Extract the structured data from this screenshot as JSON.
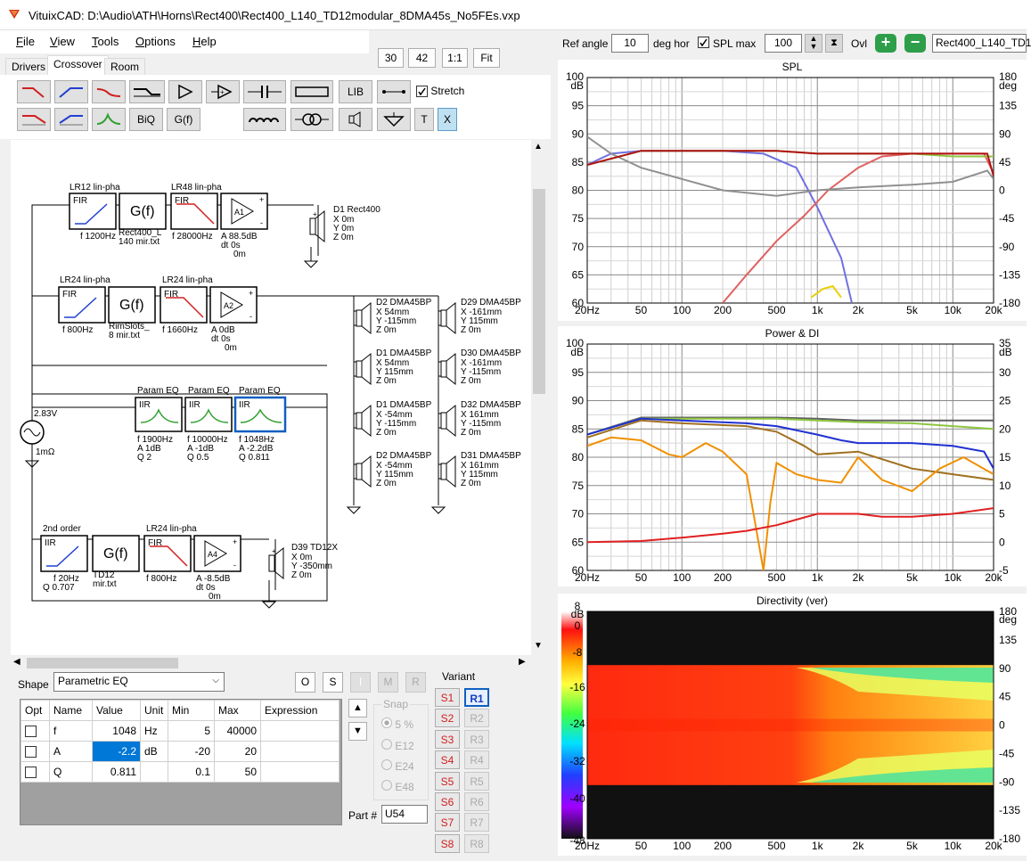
{
  "window": {
    "title": "VituixCAD: D:\\Audio\\ATH\\Horns\\Rect400\\Rect400_L140_TD12modular_8DMA45s_No5FEs.vxp"
  },
  "menu": [
    {
      "u": "F",
      "rest": "ile"
    },
    {
      "u": "V",
      "rest": "iew"
    },
    {
      "u": "T",
      "rest": "ools"
    },
    {
      "u": "O",
      "rest": "ptions"
    },
    {
      "u": "H",
      "rest": "elp"
    }
  ],
  "zoom": {
    "v1": "30",
    "v2": "42",
    "one": "1:1",
    "fit": "Fit"
  },
  "tabs": [
    "Drivers",
    "Crossover",
    "Room"
  ],
  "toolbox": {
    "lib": "LIB",
    "stretch": "Stretch",
    "biq": "BiQ",
    "gf": "G(f)",
    "t": "T",
    "x": "X"
  },
  "schematic": {
    "row1": {
      "lr12": "LR12 lin-pha",
      "lr48": "LR48 lin-pha",
      "fir": "FIR",
      "gf": "G(f)",
      "f1": "f  1200Hz",
      "gtxt1": "Rect400_L",
      "gtxt2": "140 mir.txt",
      "f2": "f  28000Hz",
      "amp": "A1",
      "a": "A  88.5dB",
      "dt": "dt 0s",
      "z": "0m",
      "d1": "D1 Rect400",
      "x": "X 0m",
      "y": "Y 0m",
      "zz": "Z 0m"
    },
    "row2": {
      "lr24a": "LR24 lin-pha",
      "lr24b": "LR24 lin-pha",
      "f1": "f  800Hz",
      "gtxt1": "RimSlots_",
      "gtxt2": "8 mir.txt",
      "f2": "f  1660Hz",
      "amp": "A2",
      "a": "A  0dB",
      "dt": "dt 0s",
      "z": "0m"
    },
    "source": {
      "v": "2.83V",
      "r": "1mΩ"
    },
    "eq": {
      "p1": "Param EQ",
      "p2": "Param EQ",
      "p3": "Param EQ",
      "iir": "IIR",
      "e1f": "f  1900Hz",
      "e1a": "A  1dB",
      "e1q": "Q 2",
      "e2f": "f  10000Hz",
      "e2a": "A  -1dB",
      "e2q": "Q 0.5",
      "e3f": "f  1048Hz",
      "e3a": "A  -2.2dB",
      "e3q": "Q 0.811"
    },
    "row3": {
      "o2": "2nd order",
      "lr24": "LR24 lin-pha",
      "f1": "f  20Hz",
      "q": "Q 0.707",
      "gtxt1": "TD12",
      "gtxt2": "mir.txt",
      "f2": "f  800Hz",
      "amp": "A4",
      "a": "A  -8.5dB",
      "dt": "dt 0s",
      "z": "0m",
      "d": "D39 TD12X",
      "x": "X 0m",
      "y": "Y -350mm",
      "zz": "Z 0m"
    },
    "drivers": [
      {
        "n": "D2 DMA45BP",
        "x": "X 54mm",
        "y": "Y -115mm",
        "z": "Z 0m"
      },
      {
        "n": "D1 DMA45BP",
        "x": "X 54mm",
        "y": "Y 115mm",
        "z": "Z 0m"
      },
      {
        "n": "D1 DMA45BP",
        "x": "X -54mm",
        "y": "Y -115mm",
        "z": "Z 0m"
      },
      {
        "n": "D2 DMA45BP",
        "x": "X -54mm",
        "y": "Y 115mm",
        "z": "Z 0m"
      },
      {
        "n": "D29 DMA45BP",
        "x": "X -161mm",
        "y": "Y 115mm",
        "z": "Z 0m"
      },
      {
        "n": "D30 DMA45BP",
        "x": "X -161mm",
        "y": "Y -115mm",
        "z": "Z 0m"
      },
      {
        "n": "D32 DMA45BP",
        "x": "X 161mm",
        "y": "Y -115mm",
        "z": "Z 0m"
      },
      {
        "n": "D31 DMA45BP",
        "x": "X 161mm",
        "y": "Y 115mm",
        "z": "Z 0m"
      }
    ]
  },
  "shape": {
    "label": "Shape",
    "value": "Parametric EQ",
    "btns": [
      "O",
      "S",
      "I",
      "M",
      "R"
    ]
  },
  "params": {
    "headers": [
      "Opt",
      "Name",
      "Value",
      "Unit",
      "Min",
      "Max",
      "Expression"
    ],
    "rows": [
      {
        "name": "f",
        "value": "1048",
        "unit": "Hz",
        "min": "5",
        "max": "40000"
      },
      {
        "name": "A",
        "value": "-2.2",
        "unit": "dB",
        "min": "-20",
        "max": "20"
      },
      {
        "name": "Q",
        "value": "0.811",
        "unit": "",
        "min": "0.1",
        "max": "50"
      }
    ]
  },
  "snap": {
    "title": "Snap",
    "opts": [
      "5 %",
      "E12",
      "E24",
      "E48"
    ]
  },
  "variant": {
    "title": "Variant",
    "s": [
      "S1",
      "S2",
      "S3",
      "S4",
      "S5",
      "S6",
      "S7",
      "S8"
    ],
    "r": [
      "R1",
      "R2",
      "R3",
      "R4",
      "R5",
      "R6",
      "R7",
      "R8"
    ]
  },
  "part": {
    "label": "Part #",
    "value": "U54"
  },
  "rightbar": {
    "refangle": "Ref angle",
    "refval": "10",
    "deghor": "deg hor",
    "splmax": "SPL max",
    "splval": "100",
    "ovl": "Ovl",
    "file": "Rect400_L140_TD1"
  },
  "charts": {
    "spl": {
      "title": "SPL",
      "ylabels": [
        "100",
        "95",
        "90",
        "85",
        "80",
        "75",
        "70",
        "65",
        "60"
      ],
      "yunit": "dB",
      "y2labels": [
        "180",
        "135",
        "90",
        "45",
        "0",
        "-45",
        "-90",
        "-135",
        "-180"
      ],
      "y2unit": "deg"
    },
    "power": {
      "title": "Power & DI",
      "ylabels": [
        "100",
        "95",
        "90",
        "85",
        "80",
        "75",
        "70",
        "65",
        "60"
      ],
      "yunit": "dB",
      "y2labels": [
        "35",
        "30",
        "25",
        "20",
        "15",
        "10",
        "5",
        "0",
        "-5"
      ],
      "y2unit": "dB"
    },
    "dir": {
      "title": "Directivity (ver)",
      "ylabels": [
        "8",
        "0",
        "-8",
        "-16",
        "-24",
        "-32",
        "-40",
        "-48"
      ],
      "yunit": "dB",
      "y2labels": [
        "180",
        "135",
        "90",
        "45",
        "0",
        "-45",
        "-90",
        "-135",
        "-180"
      ],
      "y2unit": "deg"
    },
    "xlabels": [
      "20Hz",
      "50",
      "100",
      "200",
      "500",
      "1k",
      "2k",
      "5k",
      "10k",
      "20k"
    ]
  },
  "chart_data": [
    {
      "type": "line",
      "title": "SPL",
      "xscale": "log",
      "xlim": [
        20,
        20000
      ],
      "ylim": [
        60,
        100
      ],
      "y2lim": [
        -180,
        180
      ],
      "series": [
        {
          "color": "#7070e0",
          "x": [
            20,
            30,
            50,
            100,
            200,
            400,
            700,
            1000,
            1500,
            1800
          ],
          "values": [
            84.5,
            86.5,
            87,
            87,
            87,
            86.5,
            84,
            77,
            68,
            60
          ]
        },
        {
          "color": "#e06060",
          "x": [
            200,
            300,
            500,
            800,
            1200,
            2000,
            3000,
            5000,
            10000,
            17000,
            20000
          ],
          "values": [
            60,
            65,
            71,
            75.5,
            80,
            84,
            86,
            86.5,
            86.5,
            86.5,
            83
          ]
        },
        {
          "color": "#909090",
          "x": [
            20,
            30,
            50,
            100,
            200,
            500,
            1000,
            2000,
            5000,
            10000,
            18000,
            20000
          ],
          "values": [
            89.5,
            86.5,
            84,
            82,
            80,
            79,
            80,
            80.5,
            81,
            81.5,
            83.5,
            82
          ]
        },
        {
          "color": "#e8d000",
          "x": [
            900,
            1100,
            1300,
            1500
          ],
          "values": [
            61,
            62.5,
            63,
            61
          ]
        },
        {
          "color": "#8dc63f",
          "x": [
            20,
            50,
            100,
            500,
            1000,
            2000,
            5000,
            10000,
            20000
          ],
          "values": [
            84.5,
            87,
            87,
            87,
            86.5,
            86.5,
            86.5,
            86,
            86
          ]
        },
        {
          "color": "#b01010",
          "x": [
            20,
            50,
            100,
            500,
            1000,
            2000,
            5000,
            10000,
            18000,
            20000
          ],
          "values": [
            84.5,
            87,
            87,
            87,
            86.5,
            86.5,
            86.5,
            86.5,
            86.5,
            82.5
          ]
        }
      ]
    },
    {
      "type": "line",
      "title": "Power & DI",
      "xscale": "log",
      "xlim": [
        20,
        20000
      ],
      "ylim": [
        60,
        100
      ],
      "y2lim": [
        -5,
        35
      ],
      "series": [
        {
          "color": "#606060",
          "x": [
            20,
            50,
            100,
            500,
            1000,
            2000,
            5000,
            10000,
            20000
          ],
          "values": [
            84,
            87,
            87,
            87,
            86.8,
            86.5,
            86.5,
            86.5,
            86.5
          ]
        },
        {
          "color": "#8dc63f",
          "x": [
            20,
            50,
            100,
            500,
            1000,
            2000,
            5000,
            10000,
            20000
          ],
          "values": [
            84,
            86.8,
            86.8,
            86.8,
            86.5,
            86.2,
            86,
            85.5,
            85
          ]
        },
        {
          "color": "#2030d0",
          "x": [
            20,
            50,
            100,
            300,
            500,
            1000,
            1500,
            2000,
            3000,
            5000,
            10000,
            17000,
            20000
          ],
          "values": [
            84,
            86.8,
            86.5,
            86,
            85.5,
            84,
            83,
            82.5,
            82.5,
            82.5,
            82,
            81,
            78
          ]
        },
        {
          "color": "#a07020",
          "x": [
            20,
            50,
            100,
            300,
            500,
            800,
            1000,
            2000,
            5000,
            10000,
            20000
          ],
          "values": [
            83.5,
            86.5,
            86,
            85.5,
            84.5,
            82,
            80.5,
            81,
            78,
            77,
            76
          ]
        },
        {
          "color": "#f09000",
          "x": [
            20,
            30,
            50,
            80,
            100,
            150,
            200,
            300,
            400,
            450,
            500,
            700,
            1000,
            1500,
            2000,
            3000,
            5000,
            8000,
            12000,
            20000
          ],
          "values": [
            82,
            83.5,
            83,
            80.5,
            80,
            82.5,
            81,
            77,
            60,
            72,
            79,
            77,
            76,
            75.5,
            80,
            76,
            74,
            78,
            80,
            77
          ]
        },
        {
          "color": "#e02020",
          "x": [
            20,
            50,
            100,
            200,
            300,
            500,
            1000,
            2000,
            3000,
            5000,
            10000,
            20000
          ],
          "values": [
            65,
            65.2,
            65.8,
            66.5,
            67,
            68,
            70,
            70,
            69.5,
            69.5,
            70,
            71
          ]
        }
      ]
    },
    {
      "type": "heatmap",
      "title": "Directivity (ver)",
      "xscale": "log",
      "xlim": [
        20,
        20000
      ],
      "ylim": [
        -180,
        180
      ],
      "zlim": [
        -48,
        8
      ]
    }
  ]
}
